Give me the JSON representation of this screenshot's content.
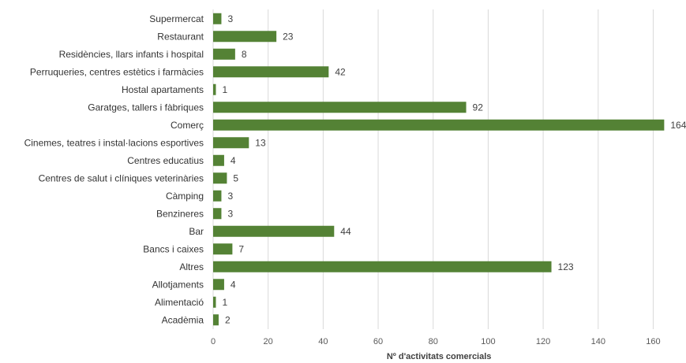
{
  "chart_data": {
    "type": "bar",
    "orientation": "horizontal",
    "categories": [
      "Supermercat",
      "Restaurant",
      "Residències, llars infants i hospital",
      "Perruqueries, centres estètics i farmàcies",
      "Hostal apartaments",
      "Garatges, tallers i fàbriques",
      "Comerç",
      "Cinemes, teatres i instal·lacions esportives",
      "Centres educatius",
      "Centres de salut i clíniques veterinàries",
      "Càmping",
      "Benzineres",
      "Bar",
      "Bancs i caixes",
      "Altres",
      "Allotjaments",
      "Alimentació",
      "Acadèmia"
    ],
    "values": [
      3,
      23,
      8,
      42,
      1,
      92,
      164,
      13,
      4,
      5,
      3,
      3,
      44,
      7,
      123,
      4,
      1,
      2
    ],
    "xlabel": "Nº d'activitats comercials",
    "ylabel": "",
    "xlim": [
      0,
      170
    ],
    "xticks": [
      0,
      20,
      40,
      60,
      80,
      100,
      120,
      140,
      160
    ],
    "grid": true,
    "bar_color": "#548235"
  }
}
